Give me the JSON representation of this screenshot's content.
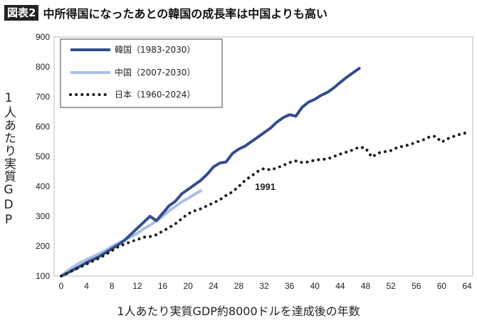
{
  "header": {
    "tag": "図表2",
    "title": "中所得国になったあとの韓国の成長率は中国よりも高い"
  },
  "chart_data": {
    "type": "line",
    "title": "中所得国になったあとの韓国の成長率は中国よりも高い",
    "xlabel": "1人あたり実質GDP約8000ドルを達成後の年数",
    "ylabel": "1人あたり実質GDP",
    "xlim": [
      0,
      64
    ],
    "ylim": [
      100,
      900
    ],
    "xticks": [
      0,
      4,
      8,
      12,
      16,
      20,
      24,
      28,
      32,
      36,
      40,
      44,
      48,
      52,
      56,
      60,
      64
    ],
    "yticks": [
      100,
      200,
      300,
      400,
      500,
      600,
      700,
      800,
      900
    ],
    "grid": false,
    "legend": "top-left",
    "annotations": [
      {
        "text": "1991",
        "x": 31,
        "y": 460
      }
    ],
    "series": [
      {
        "name": "韓国（1983-2030）",
        "color": "#334d8c",
        "style": "solid",
        "x": [
          0,
          1,
          2,
          3,
          4,
          5,
          6,
          7,
          8,
          9,
          10,
          11,
          12,
          13,
          14,
          15,
          16,
          17,
          18,
          19,
          20,
          21,
          22,
          23,
          24,
          25,
          26,
          27,
          28,
          29,
          30,
          31,
          32,
          33,
          34,
          35,
          36,
          37,
          38,
          39,
          40,
          41,
          42,
          43,
          44,
          45,
          46,
          47
        ],
        "y": [
          100,
          110,
          122,
          133,
          145,
          155,
          165,
          178,
          192,
          205,
          220,
          240,
          260,
          280,
          300,
          285,
          310,
          335,
          350,
          375,
          390,
          405,
          420,
          440,
          465,
          478,
          482,
          510,
          525,
          535,
          550,
          565,
          580,
          595,
          615,
          630,
          640,
          635,
          665,
          682,
          692,
          705,
          715,
          730,
          748,
          765,
          780,
          795
        ]
      },
      {
        "name": "中国（2007-2030）",
        "color": "#a9bfe8",
        "style": "solid",
        "x": [
          0,
          1,
          2,
          3,
          4,
          5,
          6,
          7,
          8,
          9,
          10,
          11,
          12,
          13,
          14,
          15,
          16,
          17,
          18,
          19,
          20,
          21,
          22
        ],
        "y": [
          100,
          118,
          132,
          145,
          155,
          165,
          175,
          185,
          200,
          210,
          220,
          232,
          243,
          258,
          270,
          285,
          300,
          318,
          333,
          348,
          360,
          373,
          385
        ]
      },
      {
        "name": "日本（1960-2024）",
        "color": "#1a1a1a",
        "style": "dotted",
        "x": [
          0,
          1,
          2,
          3,
          4,
          5,
          6,
          7,
          8,
          9,
          10,
          11,
          12,
          13,
          14,
          15,
          16,
          17,
          18,
          19,
          20,
          21,
          22,
          23,
          24,
          25,
          26,
          27,
          28,
          29,
          30,
          31,
          32,
          33,
          34,
          35,
          36,
          37,
          38,
          39,
          40,
          41,
          42,
          43,
          44,
          45,
          46,
          47,
          48,
          49,
          50,
          51,
          52,
          53,
          54,
          55,
          56,
          57,
          58,
          59,
          60,
          61,
          62,
          63,
          64
        ],
        "y": [
          100,
          110,
          120,
          130,
          140,
          150,
          160,
          172,
          185,
          198,
          207,
          215,
          222,
          230,
          232,
          238,
          250,
          262,
          275,
          292,
          308,
          318,
          325,
          335,
          345,
          355,
          370,
          382,
          400,
          420,
          435,
          450,
          460,
          455,
          462,
          470,
          480,
          485,
          480,
          482,
          488,
          490,
          492,
          500,
          508,
          515,
          522,
          532,
          528,
          498,
          512,
          516,
          520,
          530,
          535,
          540,
          548,
          555,
          565,
          568,
          548,
          560,
          568,
          575,
          580
        ]
      }
    ]
  }
}
